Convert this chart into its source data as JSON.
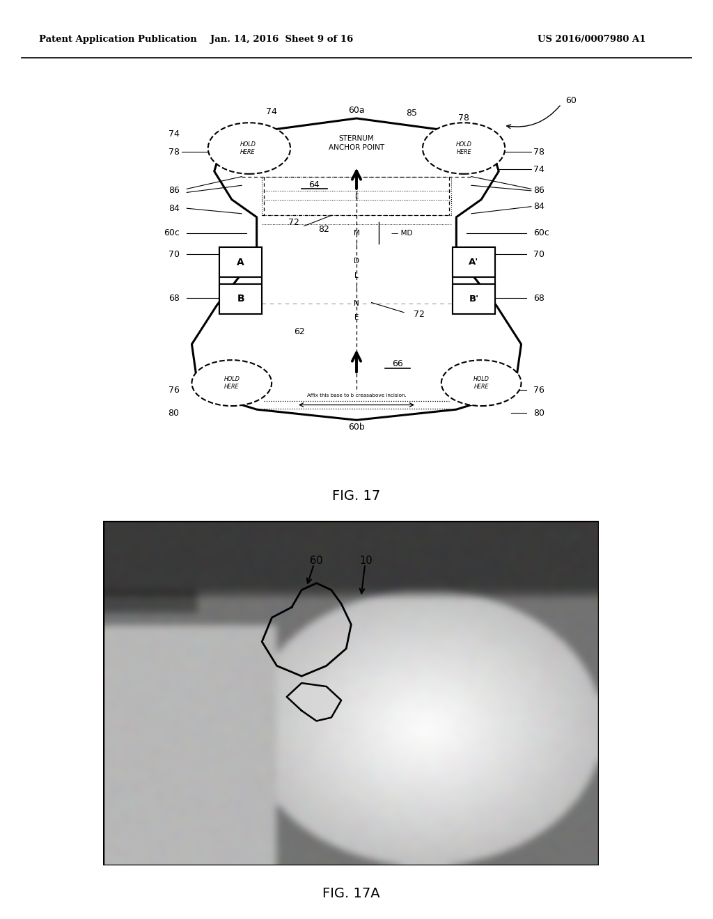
{
  "bg_color": "#ffffff",
  "header_text": "Patent Application Publication",
  "header_date": "Jan. 14, 2016  Sheet 9 of 16",
  "header_patent": "US 2016/0007980 A1",
  "fig17_label": "FIG. 17",
  "fig17a_label": "FIG. 17A",
  "sternum_text": "STERNUM\nANCHOR POINT",
  "hold_here_text": "HOLD\nHERE",
  "affix_text": "Affix this base to b creasabove incision.",
  "midline_letters": [
    "M",
    "I",
    "D",
    "L",
    "I",
    "N",
    "E"
  ],
  "photo_bg_color": "#787878",
  "photo_border_color": "#000000"
}
